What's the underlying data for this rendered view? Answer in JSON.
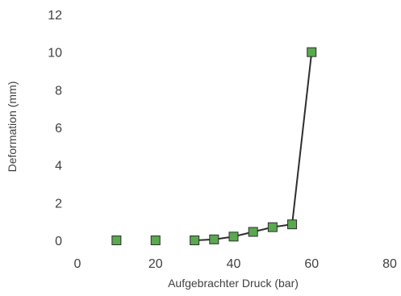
{
  "chart_data": {
    "type": "scatter",
    "title": "",
    "xlabel": "Aufgebrachter Druck (bar)",
    "ylabel": "Deformation (mm)",
    "xlim": [
      0,
      80
    ],
    "ylim": [
      0,
      12
    ],
    "x_ticks": [
      "0",
      "20",
      "40",
      "60",
      "80"
    ],
    "y_ticks": [
      "0",
      "2",
      "4",
      "6",
      "8",
      "10",
      "12"
    ],
    "grid": false,
    "legend": "none",
    "marker": "square",
    "colors": {
      "marker_fill": "#5aa84f",
      "marker_edge": "#2e2e2e",
      "line": "#2e2e2e",
      "text": "#404040"
    },
    "series": [
      {
        "points": [
          {
            "x": 10,
            "y": 0.0
          },
          {
            "x": 20,
            "y": 0.0
          }
        ],
        "connected": false
      },
      {
        "points": [
          {
            "x": 30,
            "y": 0.0
          },
          {
            "x": 35,
            "y": 0.05
          },
          {
            "x": 40,
            "y": 0.2
          },
          {
            "x": 45,
            "y": 0.45
          },
          {
            "x": 50,
            "y": 0.7
          },
          {
            "x": 55,
            "y": 0.85
          },
          {
            "x": 60,
            "y": 10.0
          }
        ],
        "connected": true
      }
    ]
  }
}
